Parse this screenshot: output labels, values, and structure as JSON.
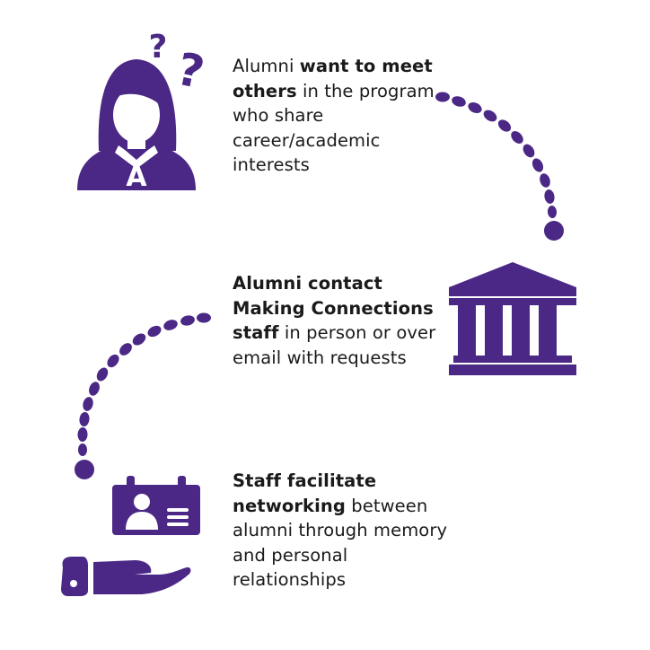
{
  "colors": {
    "accent": "#4b2885",
    "text": "#1a1a1a",
    "background": "#ffffff"
  },
  "icons": {
    "step1": "alumni-question-icon",
    "step2": "institution-building-icon",
    "step3": "id-card-on-hand-icon"
  },
  "steps": [
    {
      "text_before": "Alumni ",
      "bold": "want to meet others",
      "text_after": " in the program who share career/academic interests"
    },
    {
      "text_before": "",
      "bold": "Alumni contact Making Connections staff",
      "text_after": " in person or over email with requests"
    },
    {
      "text_before": "",
      "bold": "Staff facilitate networking",
      "text_after": " between alumni through memory and personal relationships"
    }
  ],
  "avatar_badge_letter": "A",
  "question_mark": "?"
}
